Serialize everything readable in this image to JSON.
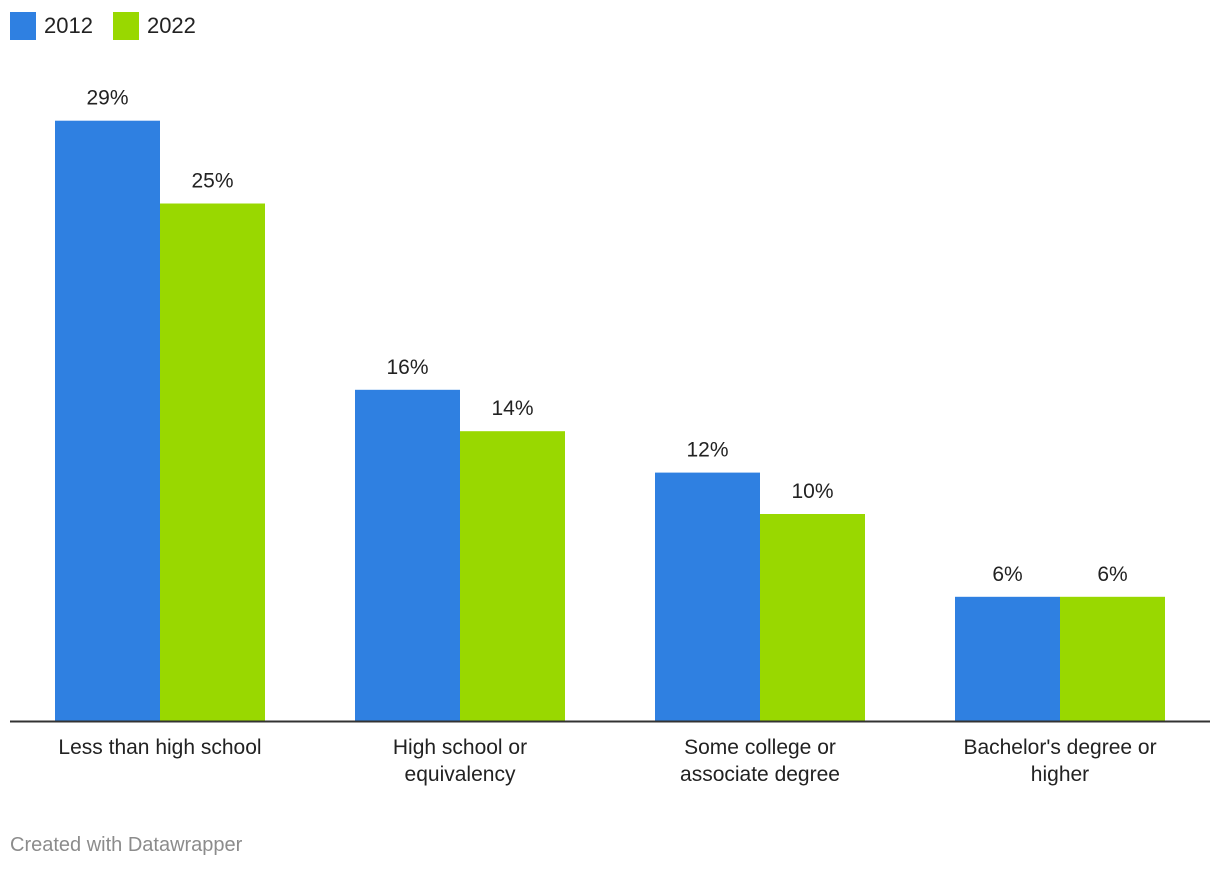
{
  "chart_data": {
    "type": "bar",
    "title": "",
    "xlabel": "",
    "ylabel": "",
    "ylim": [
      0,
      29
    ],
    "grid": false,
    "legend": "top-left",
    "categories": [
      [
        "Less than high school"
      ],
      [
        "High school or",
        "equivalency"
      ],
      [
        "Some college or",
        "associate degree"
      ],
      [
        "Bachelor's degree or",
        "higher"
      ]
    ],
    "series": [
      {
        "name": "2012",
        "color": "#2f80e1",
        "values": [
          29,
          16,
          12,
          6
        ],
        "labels": [
          "29%",
          "16%",
          "12%",
          "6%"
        ]
      },
      {
        "name": "2022",
        "color": "#99d800",
        "values": [
          25,
          14,
          10,
          6
        ],
        "labels": [
          "25%",
          "14%",
          "10%",
          "6%"
        ]
      }
    ]
  },
  "footer": {
    "credit": "Created with Datawrapper"
  }
}
